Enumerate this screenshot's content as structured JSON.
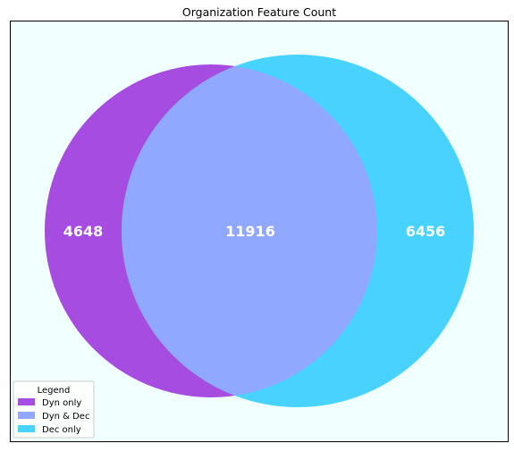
{
  "chart_data": {
    "type": "venn",
    "title": "Organization Feature Count",
    "sets": [
      "Dyn",
      "Dec"
    ],
    "regions": [
      {
        "name": "Dyn only",
        "value": 4648,
        "color": "#A64CE0"
      },
      {
        "name": "Dyn & Dec",
        "value": 11916,
        "color": "#90A8FF"
      },
      {
        "name": "Dec only",
        "value": 6456,
        "color": "#48D3FF"
      }
    ],
    "legend": {
      "title": "Legend",
      "placement": "bottom-left",
      "entries": [
        "Dyn only",
        "Dyn & Dec",
        "Dec only"
      ]
    },
    "background_color": "#F0FFFF",
    "grid": false
  }
}
